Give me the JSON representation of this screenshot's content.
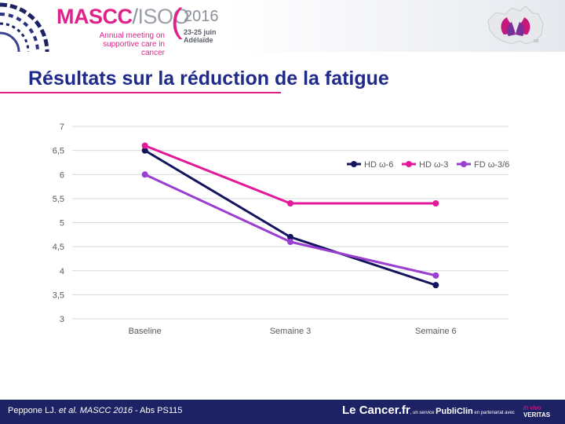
{
  "header": {
    "logo_main": "MASCC",
    "logo_slash": "/",
    "logo_isoo": "ISOO",
    "logo_paren": "(",
    "year": "2016",
    "subtitle_line1": "Annual meeting on",
    "subtitle_line2": "supportive care in cancer",
    "dates": "23-25 juin",
    "city": "Adélaïde"
  },
  "slide": {
    "title": "Résultats sur la réduction de la fatigue"
  },
  "chart_data": {
    "type": "line",
    "categories": [
      "Baseline",
      "Semaine 3",
      "Semaine 6"
    ],
    "ylim": [
      3,
      7
    ],
    "yticks": [
      "7",
      "6,5",
      "6",
      "5,5",
      "5",
      "4,5",
      "4",
      "3,5",
      "3"
    ],
    "grid": true,
    "legend_position": "top-right",
    "series": [
      {
        "name": "HD ω-6",
        "values": [
          6.5,
          4.7,
          3.7
        ],
        "color": "#14145e"
      },
      {
        "name": "HD ω-3",
        "values": [
          6.6,
          5.4,
          5.4
        ],
        "color": "#e21a9a"
      },
      {
        "name": "FD ω-3/6",
        "values": [
          6.0,
          4.6,
          3.9
        ],
        "color": "#9b3fd1"
      }
    ]
  },
  "footer": {
    "citation_authors": "Peppone LJ. ",
    "citation_etal": "et al. MASCC 2016",
    "citation_abs": " - Abs PS115",
    "brand_le": "Le ",
    "brand_cancer": "Cancer.fr",
    "brand_service": ", un service ",
    "brand_publiclin": "PubliClin",
    "brand_partner": " en partenariat avec ",
    "brand_invivo": "in vivo",
    "brand_veritas": "VERITAS"
  }
}
